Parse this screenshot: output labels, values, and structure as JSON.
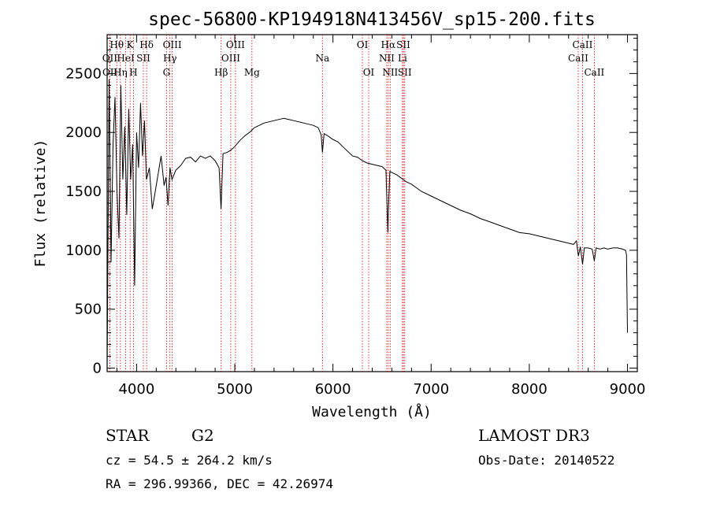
{
  "chart_data": {
    "type": "line",
    "title": "spec-56800-KP194918N413456V_sp15-200.fits",
    "xlabel": "Wavelength (Å)",
    "ylabel": "Flux (relative)",
    "xlim": [
      3700,
      9100
    ],
    "ylim": [
      -30,
      2830
    ],
    "xticks": [
      4000,
      5000,
      6000,
      7000,
      8000,
      9000
    ],
    "yticks": [
      0,
      500,
      1000,
      1500,
      2000,
      2500
    ],
    "grid": false,
    "series": [
      {
        "name": "spectrum",
        "x": [
          3700,
          3720,
          3740,
          3760,
          3780,
          3800,
          3820,
          3840,
          3860,
          3880,
          3900,
          3920,
          3940,
          3960,
          3980,
          4000,
          4020,
          4040,
          4060,
          4080,
          4100,
          4130,
          4160,
          4190,
          4220,
          4250,
          4280,
          4300,
          4320,
          4340,
          4360,
          4400,
          4450,
          4500,
          4550,
          4600,
          4650,
          4700,
          4750,
          4800,
          4840,
          4860,
          4880,
          4920,
          4960,
          5000,
          5050,
          5100,
          5150,
          5200,
          5250,
          5300,
          5350,
          5400,
          5450,
          5500,
          5550,
          5600,
          5650,
          5700,
          5750,
          5800,
          5850,
          5880,
          5893,
          5910,
          5950,
          6000,
          6050,
          6100,
          6150,
          6200,
          6250,
          6300,
          6350,
          6400,
          6450,
          6500,
          6540,
          6560,
          6563,
          6580,
          6600,
          6650,
          6700,
          6750,
          6800,
          6850,
          6900,
          7000,
          7100,
          7200,
          7300,
          7400,
          7500,
          7600,
          7700,
          7800,
          7900,
          8000,
          8100,
          8200,
          8300,
          8400,
          8450,
          8480,
          8500,
          8520,
          8542,
          8560,
          8600,
          8640,
          8662,
          8680,
          8720,
          8760,
          8800,
          8850,
          8900,
          8950,
          8980,
          8990,
          9000
        ],
        "values": [
          20,
          2450,
          900,
          1900,
          2300,
          1500,
          1100,
          2400,
          1600,
          2050,
          1300,
          2200,
          1600,
          1900,
          700,
          2000,
          1700,
          2250,
          1800,
          2100,
          1600,
          1700,
          1350,
          1500,
          1650,
          1800,
          1550,
          1620,
          1380,
          1700,
          1600,
          1680,
          1720,
          1780,
          1790,
          1750,
          1800,
          1780,
          1800,
          1760,
          1700,
          1350,
          1820,
          1830,
          1850,
          1880,
          1930,
          1970,
          2000,
          2040,
          2060,
          2080,
          2090,
          2100,
          2110,
          2120,
          2110,
          2100,
          2090,
          2080,
          2070,
          2060,
          2040,
          1980,
          1830,
          1990,
          1970,
          1940,
          1920,
          1880,
          1840,
          1800,
          1790,
          1760,
          1740,
          1730,
          1720,
          1710,
          1680,
          1150,
          1290,
          1670,
          1660,
          1640,
          1610,
          1580,
          1560,
          1530,
          1500,
          1460,
          1420,
          1380,
          1340,
          1310,
          1270,
          1240,
          1210,
          1180,
          1150,
          1140,
          1120,
          1100,
          1080,
          1060,
          1050,
          1080,
          950,
          1030,
          880,
          1020,
          1020,
          1010,
          910,
          1020,
          1010,
          1020,
          1010,
          1020,
          1020,
          1010,
          1000,
          960,
          300
        ]
      }
    ],
    "lines": [
      {
        "name": "Hθ",
        "x": 3798,
        "row": 0
      },
      {
        "name": "K",
        "x": 3934,
        "row": 0
      },
      {
        "name": "Hδ",
        "x": 4102,
        "row": 0
      },
      {
        "name": "OIII",
        "x": 4363,
        "row": 0
      },
      {
        "name": "OIII",
        "x": 5007,
        "row": 0
      },
      {
        "name": "OI",
        "x": 6300,
        "row": 0
      },
      {
        "name": "Hα",
        "x": 6563,
        "row": 0
      },
      {
        "name": "SII",
        "x": 6717,
        "row": 0
      },
      {
        "name": "CaII",
        "x": 8542,
        "row": 0
      },
      {
        "name": "OII",
        "x": 3727,
        "row": 1
      },
      {
        "name": "HeI",
        "x": 3889,
        "row": 1
      },
      {
        "name": "SII",
        "x": 4069,
        "row": 1
      },
      {
        "name": "Hγ",
        "x": 4340,
        "row": 1
      },
      {
        "name": "OIII",
        "x": 4959,
        "row": 1
      },
      {
        "name": "Na",
        "x": 5893,
        "row": 1
      },
      {
        "name": "NII",
        "x": 6548,
        "row": 1
      },
      {
        "name": "Li",
        "x": 6708,
        "row": 1
      },
      {
        "name": "CaII",
        "x": 8498,
        "row": 1
      },
      {
        "name": "OII",
        "x": 3729,
        "row": 2
      },
      {
        "name": "Hη",
        "x": 3835,
        "row": 2
      },
      {
        "name": "H",
        "x": 3968,
        "row": 2
      },
      {
        "name": "G",
        "x": 4305,
        "row": 2
      },
      {
        "name": "Hβ",
        "x": 4861,
        "row": 2
      },
      {
        "name": "Mg",
        "x": 5175,
        "row": 2
      },
      {
        "name": "OI",
        "x": 6364,
        "row": 2
      },
      {
        "name": "NII",
        "x": 6583,
        "row": 2
      },
      {
        "name": "SII",
        "x": 6731,
        "row": 2
      },
      {
        "name": "CaII",
        "x": 8662,
        "row": 2
      }
    ]
  },
  "info": {
    "class": "STAR",
    "subclass": "G2",
    "survey": "LAMOST DR3",
    "cz": "cz = 54.5 ± 264.2 km/s",
    "obs_date": "Obs-Date: 20140522",
    "coords": "RA = 296.99366, DEC =  42.26974"
  }
}
